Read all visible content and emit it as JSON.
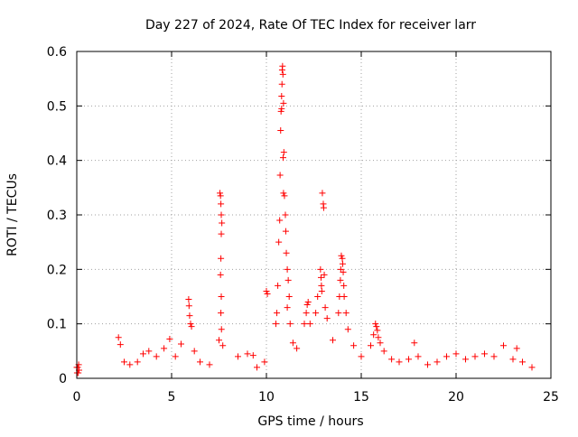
{
  "chart_data": {
    "type": "scatter",
    "title": "Day 227 of 2024, Rate Of TEC Index for receiver larr",
    "xlabel": "GPS time / hours",
    "ylabel": "ROTI / TECUs",
    "xlim": [
      0,
      25
    ],
    "ylim": [
      0,
      0.6
    ],
    "xticks": [
      0,
      5,
      10,
      15,
      20,
      25
    ],
    "xtick_labels": [
      "0",
      "5",
      "10",
      "15",
      "20",
      "25"
    ],
    "yticks": [
      0,
      0.1,
      0.2,
      0.3,
      0.4,
      0.5,
      0.6
    ],
    "ytick_labels": [
      "0",
      "0.1",
      "0.2",
      "0.3",
      "0.4",
      "0.5",
      "0.6"
    ],
    "grid": true,
    "marker": "+",
    "color": "#ff0000",
    "series": [
      {
        "name": "ROTI",
        "points": [
          [
            0.0,
            0.02
          ],
          [
            0.02,
            0.01
          ],
          [
            0.05,
            0.02
          ],
          [
            0.08,
            0.01
          ],
          [
            0.1,
            0.025
          ],
          [
            0.12,
            0.015
          ],
          [
            2.2,
            0.075
          ],
          [
            2.3,
            0.062
          ],
          [
            2.5,
            0.03
          ],
          [
            2.8,
            0.025
          ],
          [
            3.2,
            0.03
          ],
          [
            3.5,
            0.045
          ],
          [
            3.8,
            0.05
          ],
          [
            4.2,
            0.04
          ],
          [
            4.6,
            0.055
          ],
          [
            4.9,
            0.072
          ],
          [
            5.2,
            0.04
          ],
          [
            5.5,
            0.063
          ],
          [
            5.9,
            0.145
          ],
          [
            5.92,
            0.133
          ],
          [
            5.95,
            0.115
          ],
          [
            6.0,
            0.1
          ],
          [
            6.05,
            0.095
          ],
          [
            6.2,
            0.05
          ],
          [
            6.5,
            0.03
          ],
          [
            7.0,
            0.025
          ],
          [
            7.5,
            0.07
          ],
          [
            7.55,
            0.34
          ],
          [
            7.58,
            0.335
          ],
          [
            7.6,
            0.32
          ],
          [
            7.62,
            0.3
          ],
          [
            7.65,
            0.285
          ],
          [
            7.62,
            0.265
          ],
          [
            7.6,
            0.22
          ],
          [
            7.58,
            0.19
          ],
          [
            7.62,
            0.15
          ],
          [
            7.6,
            0.12
          ],
          [
            7.63,
            0.09
          ],
          [
            7.7,
            0.06
          ],
          [
            8.5,
            0.04
          ],
          [
            9.0,
            0.045
          ],
          [
            9.3,
            0.042
          ],
          [
            9.5,
            0.02
          ],
          [
            9.9,
            0.03
          ],
          [
            10.0,
            0.16
          ],
          [
            10.05,
            0.155
          ],
          [
            10.5,
            0.1
          ],
          [
            10.55,
            0.12
          ],
          [
            10.6,
            0.17
          ],
          [
            10.65,
            0.25
          ],
          [
            10.7,
            0.29
          ],
          [
            10.72,
            0.373
          ],
          [
            10.75,
            0.455
          ],
          [
            10.77,
            0.49
          ],
          [
            10.8,
            0.495
          ],
          [
            10.82,
            0.54
          ],
          [
            10.83,
            0.566
          ],
          [
            10.85,
            0.573
          ],
          [
            10.87,
            0.558
          ],
          [
            10.8,
            0.518
          ],
          [
            10.9,
            0.505
          ],
          [
            10.92,
            0.415
          ],
          [
            10.88,
            0.405
          ],
          [
            10.9,
            0.34
          ],
          [
            10.95,
            0.335
          ],
          [
            11.0,
            0.3
          ],
          [
            11.02,
            0.27
          ],
          [
            11.05,
            0.23
          ],
          [
            11.1,
            0.2
          ],
          [
            11.15,
            0.18
          ],
          [
            11.2,
            0.15
          ],
          [
            11.1,
            0.13
          ],
          [
            11.25,
            0.1
          ],
          [
            11.4,
            0.065
          ],
          [
            11.6,
            0.055
          ],
          [
            12.0,
            0.1
          ],
          [
            12.1,
            0.12
          ],
          [
            12.15,
            0.135
          ],
          [
            12.2,
            0.14
          ],
          [
            12.3,
            0.1
          ],
          [
            12.6,
            0.12
          ],
          [
            12.7,
            0.15
          ],
          [
            12.85,
            0.2
          ],
          [
            12.88,
            0.185
          ],
          [
            12.9,
            0.17
          ],
          [
            12.92,
            0.16
          ],
          [
            12.95,
            0.34
          ],
          [
            13.0,
            0.32
          ],
          [
            13.02,
            0.313
          ],
          [
            13.05,
            0.19
          ],
          [
            13.1,
            0.13
          ],
          [
            13.2,
            0.11
          ],
          [
            13.5,
            0.07
          ],
          [
            13.8,
            0.12
          ],
          [
            13.85,
            0.15
          ],
          [
            13.9,
            0.18
          ],
          [
            13.92,
            0.2
          ],
          [
            13.95,
            0.225
          ],
          [
            14.0,
            0.22
          ],
          [
            14.02,
            0.21
          ],
          [
            14.05,
            0.195
          ],
          [
            14.08,
            0.17
          ],
          [
            14.1,
            0.15
          ],
          [
            14.2,
            0.12
          ],
          [
            14.3,
            0.09
          ],
          [
            14.6,
            0.06
          ],
          [
            15.0,
            0.04
          ],
          [
            15.5,
            0.06
          ],
          [
            15.65,
            0.08
          ],
          [
            15.75,
            0.1
          ],
          [
            15.8,
            0.095
          ],
          [
            15.85,
            0.088
          ],
          [
            15.9,
            0.075
          ],
          [
            16.0,
            0.065
          ],
          [
            16.2,
            0.05
          ],
          [
            16.6,
            0.035
          ],
          [
            17.0,
            0.03
          ],
          [
            17.5,
            0.035
          ],
          [
            17.8,
            0.065
          ],
          [
            18.0,
            0.04
          ],
          [
            18.5,
            0.025
          ],
          [
            19.0,
            0.03
          ],
          [
            19.5,
            0.04
          ],
          [
            20.0,
            0.045
          ],
          [
            20.5,
            0.035
          ],
          [
            21.0,
            0.04
          ],
          [
            21.5,
            0.045
          ],
          [
            22.0,
            0.04
          ],
          [
            22.5,
            0.06
          ],
          [
            23.0,
            0.035
          ],
          [
            23.2,
            0.055
          ],
          [
            23.5,
            0.03
          ],
          [
            24.0,
            0.02
          ]
        ]
      }
    ]
  }
}
